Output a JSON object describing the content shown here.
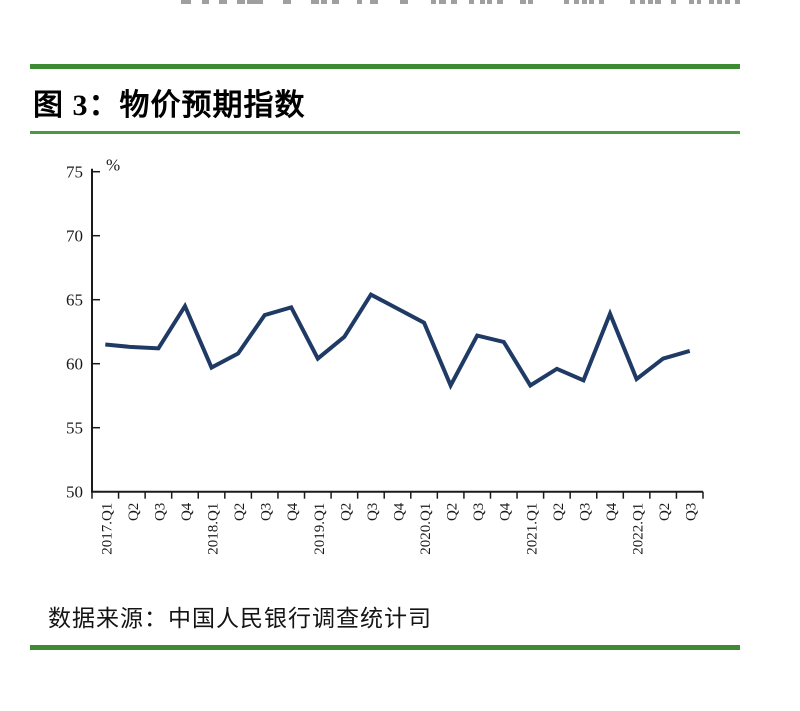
{
  "page": {
    "accent_green": "#3d8b33",
    "line_navy": "#1f3a64",
    "top_cut_segments": [
      [
        181,
        10
      ],
      [
        202,
        7
      ],
      [
        219,
        8
      ],
      [
        237,
        8
      ],
      [
        247,
        16
      ],
      [
        283,
        8
      ],
      [
        311,
        8
      ],
      [
        321,
        6
      ],
      [
        332,
        7
      ],
      [
        357,
        5
      ],
      [
        370,
        8
      ],
      [
        400,
        8
      ],
      [
        431,
        5
      ],
      [
        439,
        7
      ],
      [
        451,
        6
      ],
      [
        469,
        5
      ],
      [
        480,
        5
      ],
      [
        487,
        5
      ],
      [
        497,
        6
      ],
      [
        520,
        6
      ],
      [
        528,
        5
      ],
      [
        564,
        5
      ],
      [
        574,
        5
      ],
      [
        582,
        5
      ],
      [
        589,
        5
      ],
      [
        599,
        5
      ],
      [
        630,
        5
      ],
      [
        640,
        5
      ],
      [
        648,
        5
      ],
      [
        655,
        6
      ],
      [
        671,
        5
      ],
      [
        689,
        5
      ],
      [
        697,
        4
      ],
      [
        709,
        5
      ],
      [
        717,
        5
      ],
      [
        725,
        5
      ],
      [
        735,
        5
      ]
    ]
  },
  "header": {
    "title": "图 3：物价预期指数"
  },
  "source": {
    "text": "数据来源：中国人民银行调查统计司"
  },
  "chart_data": {
    "type": "line",
    "title": "物价预期指数",
    "unit_label": "%",
    "categories": [
      "2017.Q1",
      "Q2",
      "Q3",
      "Q4",
      "2018.Q1",
      "Q2",
      "Q3",
      "Q4",
      "2019.Q1",
      "Q2",
      "Q3",
      "Q4",
      "2020.Q1",
      "Q2",
      "Q3",
      "Q4",
      "2021.Q1",
      "Q2",
      "Q3",
      "Q4",
      "2022.Q1",
      "Q2",
      "Q3"
    ],
    "values": [
      61.5,
      61.3,
      61.2,
      64.5,
      59.7,
      60.8,
      63.8,
      64.4,
      60.4,
      62.1,
      65.4,
      64.3,
      63.2,
      58.3,
      62.2,
      61.7,
      58.3,
      59.6,
      58.7,
      63.9,
      58.8,
      60.4,
      61.0
    ],
    "ylim": [
      50,
      75
    ],
    "yticks": [
      50,
      55,
      60,
      65,
      70,
      75
    ],
    "line_color": "#1f3a64",
    "grid": false,
    "legend_position": "none",
    "xlabel": "",
    "ylabel": "%"
  }
}
